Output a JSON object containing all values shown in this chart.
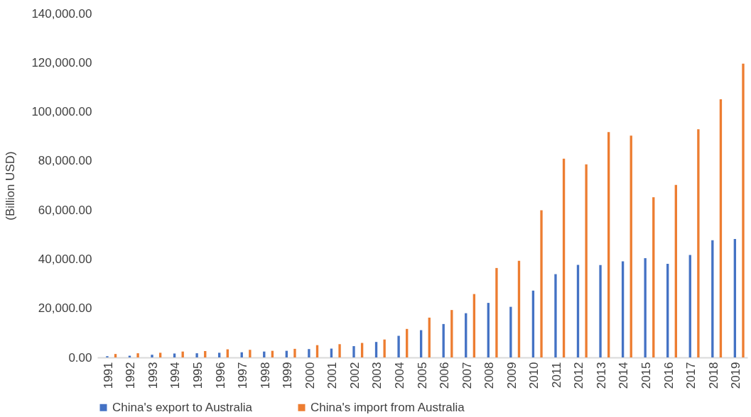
{
  "chart_data": {
    "type": "bar",
    "ylabel": "(Billion USD)",
    "categories": [
      "1991",
      "1992",
      "1993",
      "1994",
      "1995",
      "1996",
      "1997",
      "1998",
      "1999",
      "2000",
      "2001",
      "2002",
      "2003",
      "2004",
      "2005",
      "2006",
      "2007",
      "2008",
      "2009",
      "2010",
      "2011",
      "2012",
      "2013",
      "2014",
      "2015",
      "2016",
      "2017",
      "2018",
      "2019"
    ],
    "series": [
      {
        "name": "China's export to Australia",
        "color": "#4472c4",
        "values": [
          500,
          700,
          1100,
          1600,
          1700,
          1900,
          2100,
          2400,
          2700,
          3400,
          3600,
          4600,
          6300,
          8800,
          11100,
          13600,
          18000,
          22200,
          20600,
          27200,
          33900,
          37700,
          37600,
          39100,
          40400,
          38100,
          41700,
          47700,
          48200
        ]
      },
      {
        "name": "China's import from Australia",
        "color": "#ed7d31",
        "values": [
          1400,
          1700,
          1900,
          2400,
          2600,
          3300,
          3100,
          2700,
          3500,
          5000,
          5400,
          5900,
          7300,
          11600,
          16200,
          19300,
          25800,
          36400,
          39300,
          59900,
          80900,
          78600,
          91700,
          90300,
          65200,
          70200,
          92900,
          105100,
          119600
        ]
      }
    ],
    "ylim": [
      0,
      140000
    ],
    "yticks": [
      {
        "value": 0,
        "label": "0.00"
      },
      {
        "value": 20000,
        "label": "20,000.00"
      },
      {
        "value": 40000,
        "label": "40,000.00"
      },
      {
        "value": 60000,
        "label": "60,000.00"
      },
      {
        "value": 80000,
        "label": "80,000.00"
      },
      {
        "value": 100000,
        "label": "100,000.00"
      },
      {
        "value": 120000,
        "label": "120,000.00"
      },
      {
        "value": 140000,
        "label": "140,000.00"
      }
    ],
    "grid": false,
    "legend": "bottom"
  }
}
